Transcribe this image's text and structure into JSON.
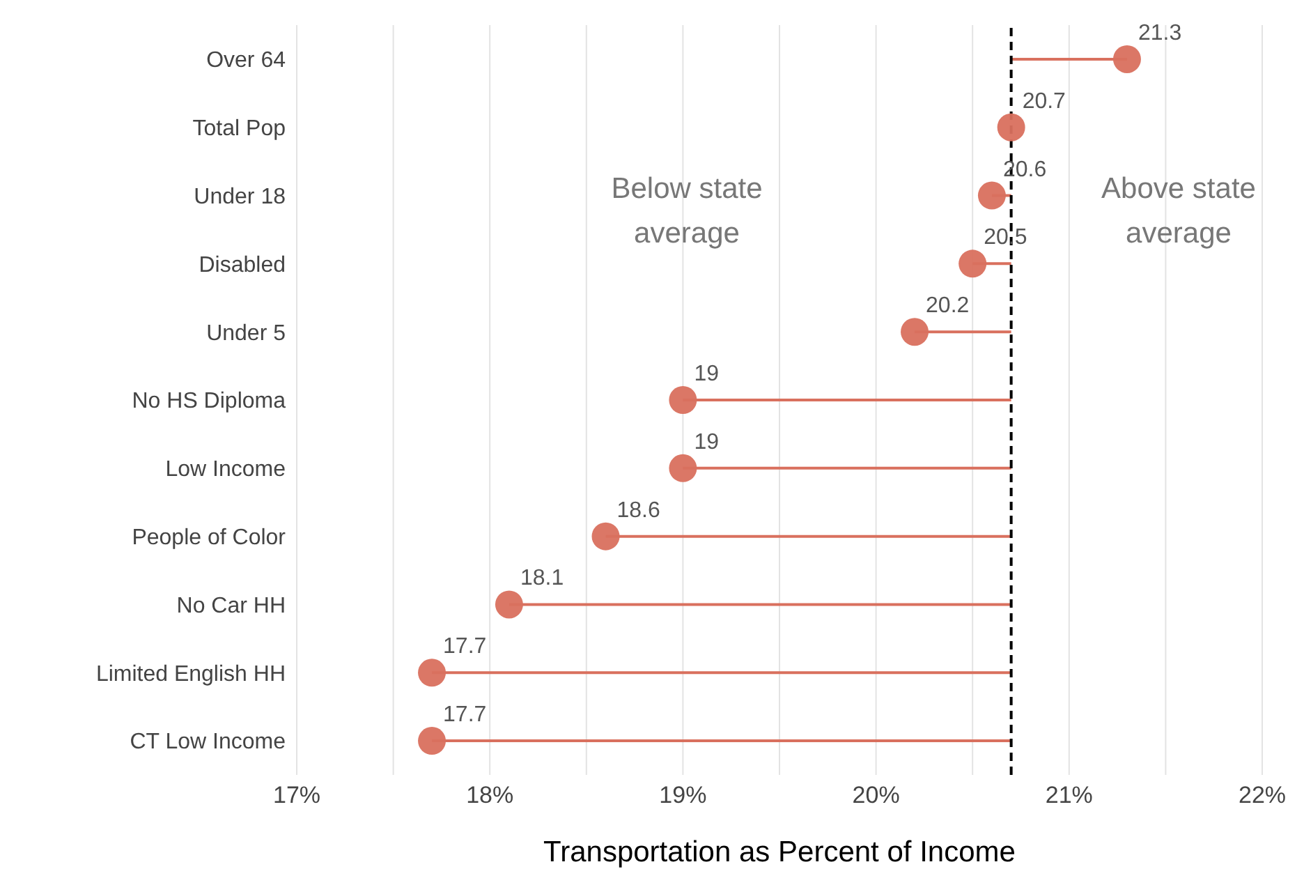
{
  "chart_data": {
    "type": "lollipop",
    "orientation": "horizontal",
    "xlabel": "Transportation as Percent of Income",
    "categories": [
      "Over 64",
      "Total Pop",
      "Under 18",
      "Disabled",
      "Under 5",
      "No HS Diploma",
      "Low Income",
      "People of Color",
      "No Car HH",
      "Limited English HH",
      "CT Low Income"
    ],
    "series": [
      {
        "color": "#d9705e",
        "values": [
          21.3,
          20.7,
          20.6,
          20.5,
          20.2,
          19,
          19,
          18.6,
          18.1,
          17.7,
          17.7
        ]
      }
    ],
    "xlim": [
      17,
      22
    ],
    "xticks": [
      {
        "value": 17,
        "label": "17%"
      },
      {
        "value": 17.5,
        "label": null
      },
      {
        "value": 18,
        "label": "18%"
      },
      {
        "value": 18.5,
        "label": null
      },
      {
        "value": 19,
        "label": "19%"
      },
      {
        "value": 19.5,
        "label": null
      },
      {
        "value": 20,
        "label": "20%"
      },
      {
        "value": 20.5,
        "label": null
      },
      {
        "value": 21,
        "label": "21%"
      },
      {
        "value": 21.5,
        "label": null
      },
      {
        "value": 22,
        "label": "22%"
      }
    ],
    "ref_lines": [
      {
        "axis": "x",
        "value": 20.7,
        "color": "#000000",
        "line_style": "dashed"
      }
    ],
    "annotations": [
      "Below state average",
      "Above state average"
    ],
    "data_labels": true,
    "grid": "x",
    "marker": "circle"
  }
}
